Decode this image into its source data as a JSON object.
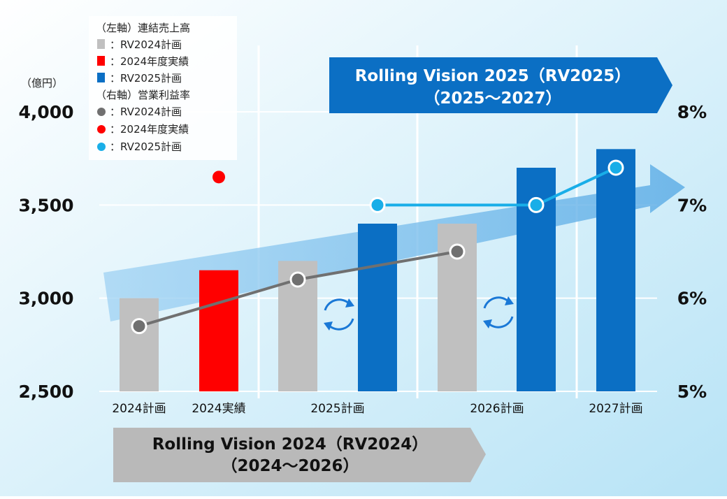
{
  "chart_data": {
    "type": "bar",
    "y_unit_label": "（億円）",
    "y_left_ticks": [
      "4,000",
      "3,500",
      "3,000",
      "2,500"
    ],
    "y_right_ticks": [
      "8%",
      "7%",
      "6%",
      "5%"
    ],
    "ylim_left": [
      2500,
      4000
    ],
    "ylim_right": [
      5,
      8
    ],
    "grid": true,
    "x_labels": [
      "2024計画",
      "2024実績",
      "2025計画",
      "2026計画",
      "2027計画"
    ],
    "bars": [
      {
        "category": "2024計画",
        "value": 3000,
        "series": "RV2024計画"
      },
      {
        "category": "2024実績",
        "value": 3150,
        "series": "2024年度実績"
      },
      {
        "category": "2025計画",
        "value": 3200,
        "series": "RV2024計画"
      },
      {
        "category": "2025計画",
        "value": 3400,
        "series": "RV2025計画"
      },
      {
        "category": "2026計画",
        "value": 3400,
        "series": "RV2024計画"
      },
      {
        "category": "2026計画",
        "value": 3700,
        "series": "RV2025計画"
      },
      {
        "category": "2027計画",
        "value": 3800,
        "series": "RV2025計画"
      }
    ],
    "lines": [
      {
        "series": "RV2024計画",
        "points": [
          {
            "category": "2024計画",
            "value": 5.7
          },
          {
            "category": "2025計画",
            "value": 6.2
          },
          {
            "category": "2026計画",
            "value": 6.5
          }
        ]
      },
      {
        "series": "2024年度実績",
        "points": [
          {
            "category": "2024実績",
            "value": 7.3
          }
        ]
      },
      {
        "series": "RV2025計画",
        "points": [
          {
            "category": "2025計画",
            "value": 7.0
          },
          {
            "category": "2026計画",
            "value": 7.0
          },
          {
            "category": "2027計画",
            "value": 7.4
          }
        ]
      }
    ],
    "legend": {
      "position": "top-left",
      "bar_header": "（左軸）連結売上高",
      "line_header": "（右軸）営業利益率",
      "bar_items": [
        {
          "label": "：RV2024計画",
          "color": "#c0c0c0"
        },
        {
          "label": "：2024年度実績",
          "color": "#ff0000"
        },
        {
          "label": "：RV2025計画",
          "color": "#0b6fc4"
        }
      ],
      "line_items": [
        {
          "label": "：RV2024計画",
          "color": "#707070"
        },
        {
          "label": "：2024年度実績",
          "color": "#ff0000"
        },
        {
          "label": "：RV2025計画",
          "color": "#19aee8"
        }
      ]
    },
    "banners": [
      {
        "line1": "Rolling Vision 2025（RV2025）",
        "line2": "（2025～2027）",
        "color": "#0b6fc4"
      },
      {
        "line1": "Rolling Vision 2024（RV2024）",
        "line2": "（2024～2026）",
        "color": "#b9b9b9"
      }
    ],
    "colors": {
      "rv2024_bar": "#c0c0c0",
      "actual_bar": "#ff0000",
      "rv2025_bar": "#0b6fc4",
      "rv2024_line": "#707070",
      "actual_point": "#ff0000",
      "rv2025_line": "#19aee8"
    },
    "icons": [
      "refresh-cycle-icon",
      "refresh-cycle-icon"
    ]
  }
}
